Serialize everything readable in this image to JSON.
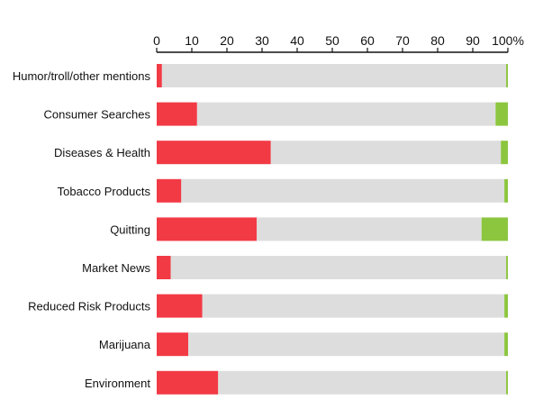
{
  "chart_data": {
    "type": "bar",
    "orientation": "horizontal",
    "stacked": true,
    "percent_stacked": true,
    "x_axis_position": "top",
    "xlim": [
      0,
      100
    ],
    "x_ticks": [
      "0",
      "10",
      "20",
      "30",
      "40",
      "50",
      "60",
      "70",
      "80",
      "90",
      "100%"
    ],
    "grid": false,
    "legend": "none",
    "categories": [
      "Humor/troll/other mentions",
      "Consumer Searches",
      "Diseases & Health",
      "Tobacco Products",
      "Quitting",
      "Market News",
      "Reduced Risk Products",
      "Marijuana",
      "Environment"
    ],
    "series": [
      {
        "color": "#f23a45",
        "values": [
          1.5,
          11.5,
          32.5,
          7,
          28.5,
          4,
          13,
          9,
          17.5
        ]
      },
      {
        "color": "#dddddd",
        "values": [
          98,
          85,
          65.5,
          92,
          64,
          95.5,
          86,
          90,
          82
        ]
      },
      {
        "color": "#8cc63f",
        "values": [
          0.5,
          3.5,
          2,
          1,
          7.5,
          0.5,
          1,
          1,
          0.5
        ]
      }
    ]
  }
}
